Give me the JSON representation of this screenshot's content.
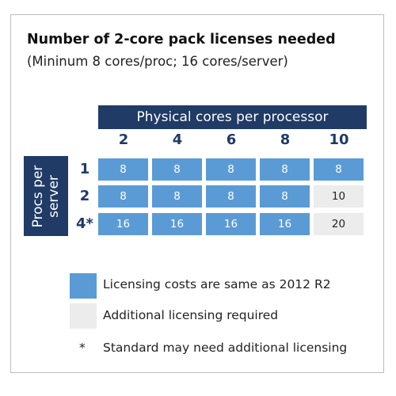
{
  "title": "Number of 2-core pack licenses needed",
  "subtitle": "(Mininum 8 cores/proc; 16 cores/server)",
  "column_header": "Physical cores per processor",
  "columns": [
    "2",
    "4",
    "6",
    "8",
    "10"
  ],
  "row_header": [
    "Procs per",
    "server"
  ],
  "rows": [
    {
      "label": "1",
      "cells": [
        {
          "value": "8",
          "status": "same"
        },
        {
          "value": "8",
          "status": "same"
        },
        {
          "value": "8",
          "status": "same"
        },
        {
          "value": "8",
          "status": "same"
        },
        {
          "value": "8",
          "status": "same"
        }
      ]
    },
    {
      "label": "2",
      "cells": [
        {
          "value": "8",
          "status": "same"
        },
        {
          "value": "8",
          "status": "same"
        },
        {
          "value": "8",
          "status": "same"
        },
        {
          "value": "8",
          "status": "same"
        },
        {
          "value": "10",
          "status": "additional"
        }
      ]
    },
    {
      "label": "4*",
      "cells": [
        {
          "value": "16",
          "status": "same"
        },
        {
          "value": "16",
          "status": "same"
        },
        {
          "value": "16",
          "status": "same"
        },
        {
          "value": "16",
          "status": "same"
        },
        {
          "value": "20",
          "status": "additional"
        }
      ]
    }
  ],
  "legend": {
    "same": "Licensing costs are same as 2012 R2",
    "additional": "Additional licensing required",
    "footnote_marker": "*",
    "footnote": "Standard may need additional licensing"
  },
  "colors": {
    "header_band": "#1f3b66",
    "same": "#5b9bd5",
    "additional": "#ececec"
  }
}
